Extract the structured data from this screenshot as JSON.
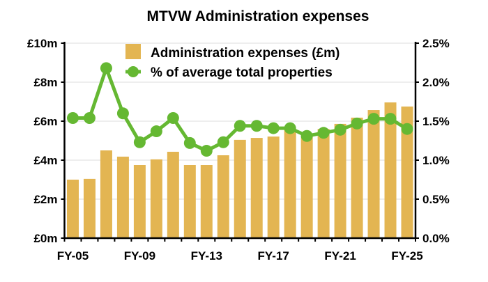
{
  "chart_data": {
    "type": "bar",
    "title": "MTVW Administration expenses",
    "categories": [
      "FY-05",
      "FY-06",
      "FY-07",
      "FY-08",
      "FY-09",
      "FY-10",
      "FY-11",
      "FY-12",
      "FY-13",
      "FY-14",
      "FY-15",
      "FY-16",
      "FY-17",
      "FY-18",
      "FY-19",
      "FY-20",
      "FY-21",
      "FY-22",
      "FY-23",
      "FY-24",
      "FY-25"
    ],
    "x_tick_labels": [
      "FY-05",
      "FY-09",
      "FY-13",
      "FY-17",
      "FY-21",
      "FY-25"
    ],
    "series": [
      {
        "name": "Administration expenses (£m)",
        "type": "bar",
        "axis": "left",
        "color": "#E3B552",
        "values": [
          3.0,
          3.04,
          4.5,
          4.18,
          3.75,
          4.04,
          4.43,
          3.75,
          3.75,
          4.25,
          5.04,
          5.14,
          5.21,
          5.6,
          5.3,
          5.6,
          5.86,
          6.18,
          6.57,
          6.96,
          6.75
        ]
      },
      {
        "name": "% of average total properties",
        "type": "line",
        "axis": "right",
        "color": "#65B832",
        "values": [
          1.54,
          1.54,
          2.18,
          1.6,
          1.23,
          1.37,
          1.54,
          1.22,
          1.12,
          1.23,
          1.44,
          1.44,
          1.41,
          1.41,
          1.31,
          1.35,
          1.39,
          1.47,
          1.53,
          1.53,
          1.4
        ]
      }
    ],
    "left_axis": {
      "ylim": [
        0,
        10
      ],
      "tick_labels": [
        "£0m",
        "£2m",
        "£4m",
        "£6m",
        "£8m",
        "£10m"
      ]
    },
    "right_axis": {
      "ylim": [
        0,
        2.5
      ],
      "tick_labels": [
        "0.0%",
        "0.5%",
        "1.0%",
        "1.5%",
        "2.0%",
        "2.5%"
      ]
    },
    "grid": true,
    "legend": "top-left"
  }
}
